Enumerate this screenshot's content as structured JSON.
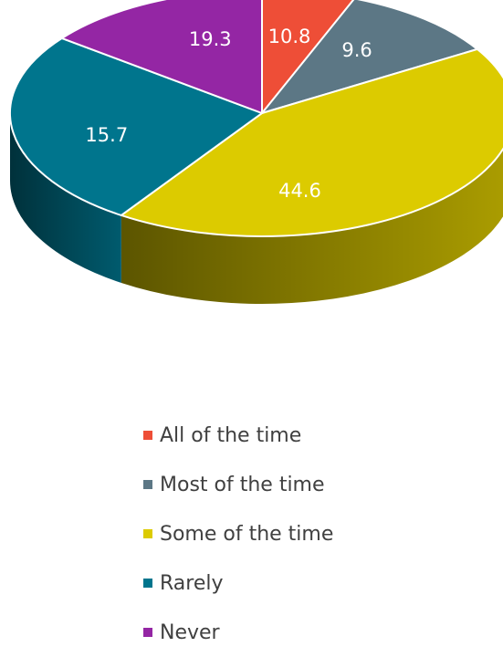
{
  "chart_data": {
    "type": "pie",
    "style": "3d",
    "title": "",
    "categories": [
      "All of the time",
      "Most of the time",
      "Some of the time",
      "Rarely",
      "Never"
    ],
    "values": [
      10.8,
      9.6,
      44.6,
      15.7,
      19.3
    ],
    "value_labels": [
      "10.8",
      "9.6",
      "44.6",
      "15.7",
      "19.3"
    ],
    "colors": [
      "#EE4E37",
      "#5C7785",
      "#DCCB00",
      "#00758D",
      "#9426A4"
    ],
    "legend_position": "bottom"
  }
}
